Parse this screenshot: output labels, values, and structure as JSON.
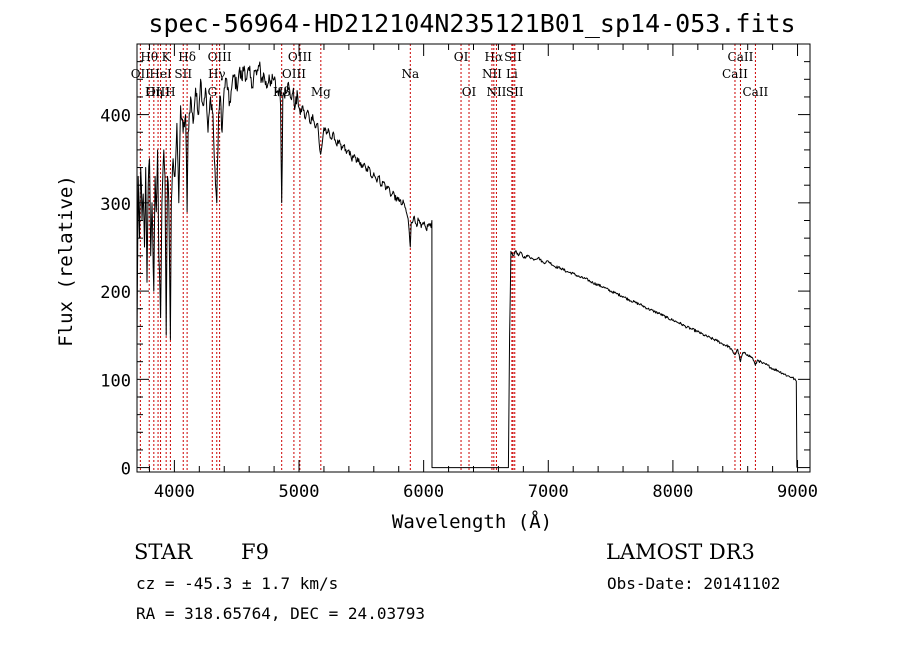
{
  "chart_data": {
    "type": "line",
    "title": "spec-56964-HD212104N235121B01_sp14-053.fits",
    "xlabel": "Wavelength (Å)",
    "ylabel": "Flux (relative)",
    "xlim": [
      3700,
      9100
    ],
    "ylim": [
      -5,
      480
    ],
    "x_ticks": [
      4000,
      5000,
      6000,
      7000,
      8000,
      9000
    ],
    "y_ticks": [
      0,
      100,
      200,
      300,
      400
    ],
    "line_color": "#000000",
    "marker_color": "#cc0000",
    "series": [
      {
        "name": "spectrum",
        "points": [
          [
            3700,
            140
          ],
          [
            3710,
            330
          ],
          [
            3720,
            260
          ],
          [
            3730,
            340
          ],
          [
            3740,
            280
          ],
          [
            3750,
            310
          ],
          [
            3760,
            250
          ],
          [
            3770,
            340
          ],
          [
            3780,
            210
          ],
          [
            3790,
            320
          ],
          [
            3800,
            350
          ],
          [
            3810,
            240
          ],
          [
            3820,
            300
          ],
          [
            3835,
            200
          ],
          [
            3845,
            330
          ],
          [
            3855,
            290
          ],
          [
            3865,
            360
          ],
          [
            3875,
            240
          ],
          [
            3889,
            170
          ],
          [
            3900,
            300
          ],
          [
            3915,
            360
          ],
          [
            3925,
            330
          ],
          [
            3934,
            150
          ],
          [
            3945,
            330
          ],
          [
            3955,
            300
          ],
          [
            3968,
            145
          ],
          [
            3975,
            300
          ],
          [
            3990,
            350
          ],
          [
            4005,
            330
          ],
          [
            4020,
            390
          ],
          [
            4035,
            300
          ],
          [
            4050,
            410
          ],
          [
            4070,
            380
          ],
          [
            4090,
            400
          ],
          [
            4102,
            290
          ],
          [
            4110,
            380
          ],
          [
            4130,
            420
          ],
          [
            4150,
            390
          ],
          [
            4170,
            430
          ],
          [
            4190,
            400
          ],
          [
            4210,
            440
          ],
          [
            4230,
            410
          ],
          [
            4250,
            430
          ],
          [
            4270,
            380
          ],
          [
            4290,
            420
          ],
          [
            4310,
            400
          ],
          [
            4320,
            350
          ],
          [
            4340,
            300
          ],
          [
            4355,
            400
          ],
          [
            4370,
            420
          ],
          [
            4383,
            380
          ],
          [
            4400,
            430
          ],
          [
            4420,
            440
          ],
          [
            4440,
            410
          ],
          [
            4460,
            430
          ],
          [
            4480,
            445
          ],
          [
            4500,
            430
          ],
          [
            4520,
            450
          ],
          [
            4540,
            440
          ],
          [
            4560,
            455
          ],
          [
            4580,
            440
          ],
          [
            4600,
            450
          ],
          [
            4620,
            430
          ],
          [
            4640,
            450
          ],
          [
            4660,
            445
          ],
          [
            4680,
            455
          ],
          [
            4700,
            440
          ],
          [
            4720,
            445
          ],
          [
            4740,
            430
          ],
          [
            4760,
            445
          ],
          [
            4780,
            435
          ],
          [
            4800,
            440
          ],
          [
            4820,
            425
          ],
          [
            4840,
            430
          ],
          [
            4852,
            410
          ],
          [
            4861,
            300
          ],
          [
            4870,
            420
          ],
          [
            4890,
            430
          ],
          [
            4910,
            435
          ],
          [
            4930,
            420
          ],
          [
            4950,
            425
          ],
          [
            4970,
            410
          ],
          [
            4990,
            420
          ],
          [
            5010,
            400
          ],
          [
            5030,
            410
          ],
          [
            5050,
            395
          ],
          [
            5070,
            405
          ],
          [
            5090,
            390
          ],
          [
            5110,
            400
          ],
          [
            5130,
            385
          ],
          [
            5150,
            390
          ],
          [
            5167,
            360
          ],
          [
            5173,
            355
          ],
          [
            5184,
            365
          ],
          [
            5200,
            385
          ],
          [
            5220,
            378
          ],
          [
            5240,
            382
          ],
          [
            5260,
            372
          ],
          [
            5280,
            378
          ],
          [
            5300,
            366
          ],
          [
            5320,
            370
          ],
          [
            5340,
            360
          ],
          [
            5360,
            365
          ],
          [
            5380,
            356
          ],
          [
            5400,
            360
          ],
          [
            5420,
            350
          ],
          [
            5440,
            354
          ],
          [
            5460,
            346
          ],
          [
            5480,
            350
          ],
          [
            5500,
            340
          ],
          [
            5520,
            344
          ],
          [
            5540,
            336
          ],
          [
            5560,
            340
          ],
          [
            5580,
            330
          ],
          [
            5600,
            334
          ],
          [
            5620,
            326
          ],
          [
            5640,
            330
          ],
          [
            5660,
            320
          ],
          [
            5680,
            324
          ],
          [
            5700,
            316
          ],
          [
            5720,
            318
          ],
          [
            5740,
            308
          ],
          [
            5760,
            312
          ],
          [
            5780,
            302
          ],
          [
            5800,
            306
          ],
          [
            5820,
            298
          ],
          [
            5840,
            300
          ],
          [
            5860,
            290
          ],
          [
            5875,
            282
          ],
          [
            5893,
            250
          ],
          [
            5900,
            278
          ],
          [
            5920,
            284
          ],
          [
            5940,
            276
          ],
          [
            5960,
            280
          ],
          [
            5980,
            272
          ],
          [
            6000,
            276
          ],
          [
            6020,
            270
          ],
          [
            6040,
            276
          ],
          [
            6060,
            272
          ],
          [
            6066,
            280
          ],
          [
            6067,
            0
          ],
          [
            6680,
            0
          ],
          [
            6690,
            150
          ],
          [
            6700,
            245
          ],
          [
            6720,
            240
          ],
          [
            6740,
            246
          ],
          [
            6760,
            240
          ],
          [
            6780,
            244
          ],
          [
            6800,
            238
          ],
          [
            6840,
            240
          ],
          [
            6880,
            236
          ],
          [
            6920,
            238
          ],
          [
            6960,
            232
          ],
          [
            7000,
            234
          ],
          [
            7050,
            228
          ],
          [
            7100,
            226
          ],
          [
            7150,
            222
          ],
          [
            7200,
            220
          ],
          [
            7250,
            216
          ],
          [
            7300,
            214
          ],
          [
            7350,
            210
          ],
          [
            7400,
            207
          ],
          [
            7450,
            204
          ],
          [
            7500,
            200
          ],
          [
            7550,
            197
          ],
          [
            7600,
            194
          ],
          [
            7650,
            190
          ],
          [
            7700,
            187
          ],
          [
            7750,
            184
          ],
          [
            7800,
            180
          ],
          [
            7850,
            177
          ],
          [
            7900,
            174
          ],
          [
            7950,
            170
          ],
          [
            8000,
            167
          ],
          [
            8050,
            164
          ],
          [
            8100,
            160
          ],
          [
            8150,
            157
          ],
          [
            8200,
            154
          ],
          [
            8250,
            150
          ],
          [
            8300,
            147
          ],
          [
            8350,
            144
          ],
          [
            8400,
            140
          ],
          [
            8450,
            137
          ],
          [
            8498,
            128
          ],
          [
            8520,
            134
          ],
          [
            8542,
            120
          ],
          [
            8560,
            130
          ],
          [
            8600,
            128
          ],
          [
            8640,
            124
          ],
          [
            8662,
            116
          ],
          [
            8680,
            122
          ],
          [
            8720,
            118
          ],
          [
            8760,
            116
          ],
          [
            8800,
            112
          ],
          [
            8840,
            110
          ],
          [
            8880,
            107
          ],
          [
            8920,
            104
          ],
          [
            8960,
            102
          ],
          [
            8990,
            98
          ],
          [
            8995,
            0
          ]
        ]
      }
    ],
    "line_markers": [
      {
        "label": "Hθ",
        "x": 3798,
        "row": 1
      },
      {
        "label": "OII",
        "x": 3727,
        "row": 2
      },
      {
        "label": "OIII",
        "x": 3869,
        "row": 3
      },
      {
        "label": "Hη",
        "x": 3835,
        "row": 3
      },
      {
        "label": "K",
        "x": 3934,
        "row": 1
      },
      {
        "label": "HeI",
        "x": 3889,
        "row": 2
      },
      {
        "label": "H",
        "x": 3968,
        "row": 3
      },
      {
        "label": "SII",
        "x": 4071,
        "row": 2
      },
      {
        "label": "Hδ",
        "x": 4102,
        "row": 1
      },
      {
        "label": "OIII",
        "x": 4363,
        "row": 1
      },
      {
        "label": "Hγ",
        "x": 4340,
        "row": 2
      },
      {
        "label": "G",
        "x": 4304,
        "row": 3
      },
      {
        "label": "Hβ",
        "x": 4861,
        "row": 3
      },
      {
        "label": "OIII",
        "x": 5007,
        "row": 1
      },
      {
        "label": "OIII",
        "x": 4959,
        "row": 2
      },
      {
        "label": "Mg",
        "x": 5175,
        "row": 3
      },
      {
        "label": "Na",
        "x": 5893,
        "row": 2
      },
      {
        "label": "OI",
        "x": 6300,
        "row": 1
      },
      {
        "label": "OI",
        "x": 6364,
        "row": 3
      },
      {
        "label": "Hα",
        "x": 6563,
        "row": 1
      },
      {
        "label": "NII",
        "x": 6548,
        "row": 2
      },
      {
        "label": "NII",
        "x": 6584,
        "row": 3
      },
      {
        "label": "SII",
        "x": 6717,
        "row": 1
      },
      {
        "label": "Li",
        "x": 6708,
        "row": 2
      },
      {
        "label": "SII",
        "x": 6731,
        "row": 3
      },
      {
        "label": "CaII",
        "x": 8542,
        "row": 1
      },
      {
        "label": "CaII",
        "x": 8498,
        "row": 2
      },
      {
        "label": "CaII",
        "x": 8662,
        "row": 3
      }
    ]
  },
  "info": {
    "object_class": "STAR",
    "subclass": "F9",
    "survey": "LAMOST DR3",
    "redshift": "cz = -45.3 ± 1.7 km/s",
    "obs_date": "Obs-Date: 20141102",
    "coords": "RA = 318.65764, DEC =  24.03793"
  }
}
